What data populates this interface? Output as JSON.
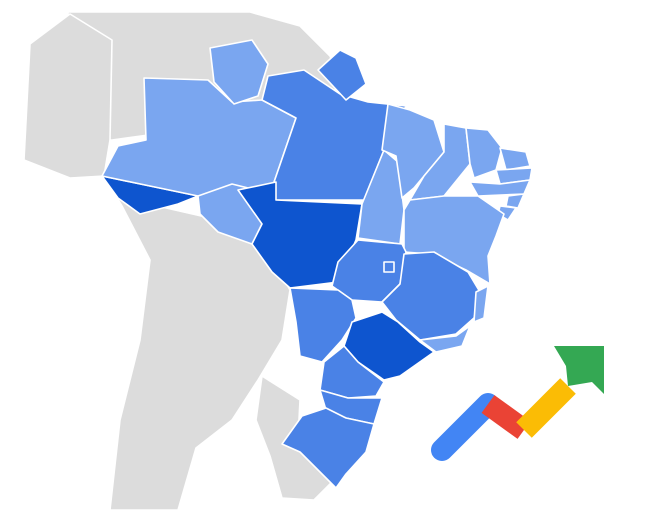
{
  "map": {
    "type": "choropleth",
    "region": "Brazil",
    "scale_colors": {
      "low": "#7aa6f0",
      "mid": "#4a82e6",
      "high": "#0e55cf"
    },
    "background_land_color": "#dcdcdc",
    "states": [
      {
        "code": "AC",
        "level": "high"
      },
      {
        "code": "AM",
        "level": "low"
      },
      {
        "code": "RR",
        "level": "low"
      },
      {
        "code": "PA",
        "level": "mid"
      },
      {
        "code": "AP",
        "level": "mid"
      },
      {
        "code": "RO",
        "level": "low"
      },
      {
        "code": "MT",
        "level": "high"
      },
      {
        "code": "TO",
        "level": "low"
      },
      {
        "code": "MA",
        "level": "low"
      },
      {
        "code": "PI",
        "level": "low"
      },
      {
        "code": "CE",
        "level": "low"
      },
      {
        "code": "RN",
        "level": "low"
      },
      {
        "code": "PB",
        "level": "low"
      },
      {
        "code": "PE",
        "level": "low"
      },
      {
        "code": "AL",
        "level": "low"
      },
      {
        "code": "SE",
        "level": "low"
      },
      {
        "code": "BA",
        "level": "low"
      },
      {
        "code": "GO",
        "level": "mid"
      },
      {
        "code": "DF",
        "level": "mid"
      },
      {
        "code": "MG",
        "level": "mid"
      },
      {
        "code": "ES",
        "level": "low"
      },
      {
        "code": "RJ",
        "level": "low"
      },
      {
        "code": "MS",
        "level": "mid"
      },
      {
        "code": "SP",
        "level": "high"
      },
      {
        "code": "PR",
        "level": "mid"
      },
      {
        "code": "SC",
        "level": "mid"
      },
      {
        "code": "RS",
        "level": "mid"
      }
    ]
  },
  "logo": {
    "icon": "google-trends-icon",
    "colors": [
      "#4285f4",
      "#ea4335",
      "#fbbc05",
      "#34a853"
    ]
  }
}
